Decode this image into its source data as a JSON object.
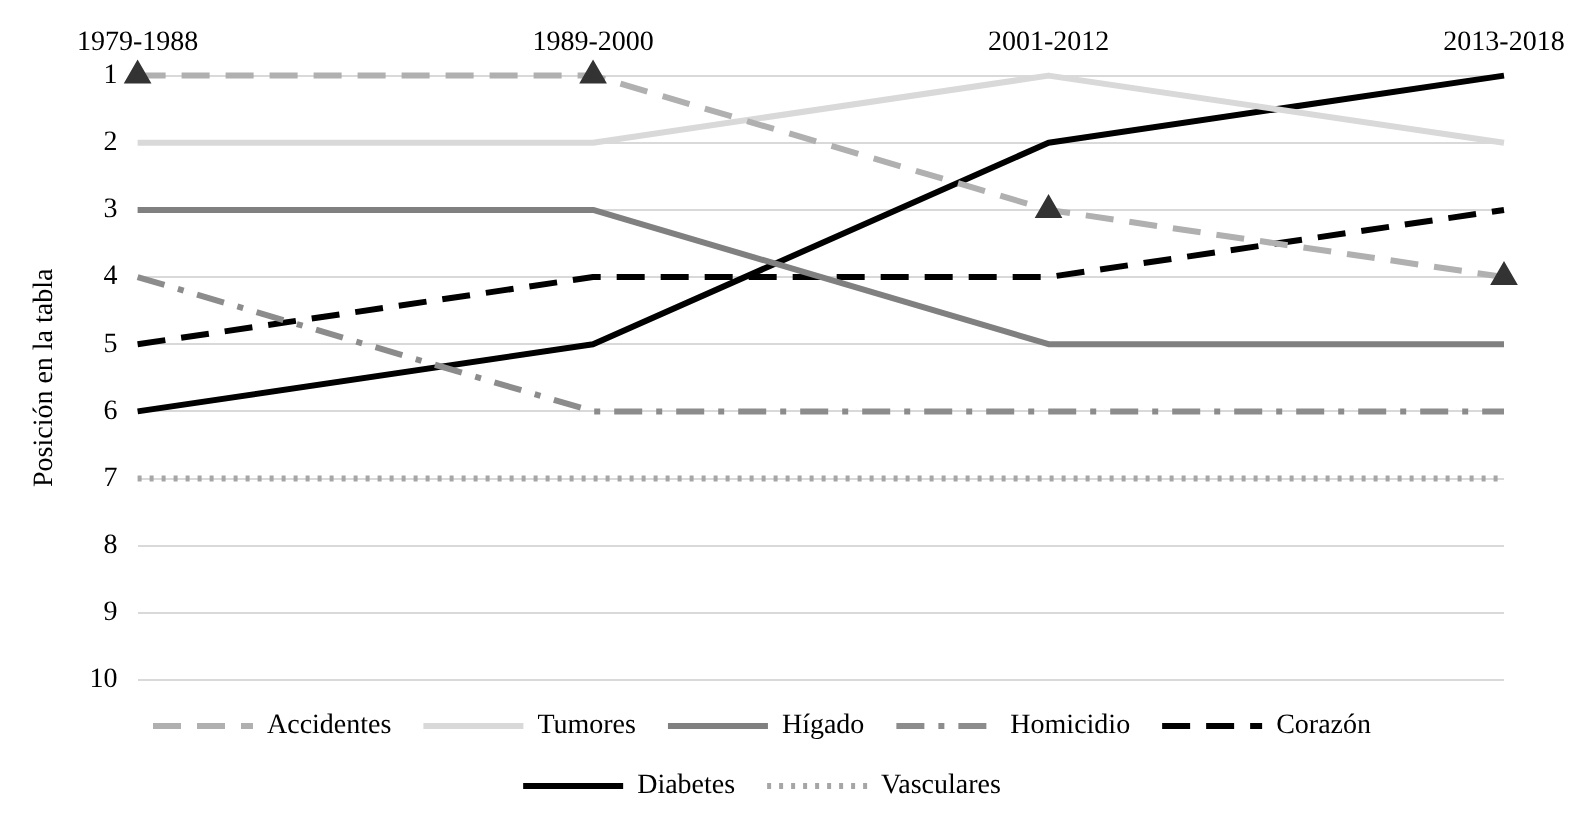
{
  "chart_data": {
    "type": "line",
    "ylabel": "Posición en la tabla",
    "categories": [
      "1979-1988",
      "1989-2000",
      "2001-2012",
      "2013-2018"
    ],
    "series": [
      {
        "name": "Accidentes",
        "color": "#b0b0b0",
        "values": [
          1,
          1,
          3,
          4
        ],
        "line_style": "dashed",
        "marker": "triangle"
      },
      {
        "name": "Tumores",
        "color": "#d9d9d9",
        "values": [
          2,
          2,
          1,
          2
        ],
        "line_style": "solid"
      },
      {
        "name": "Hígado",
        "color": "#808080",
        "values": [
          3,
          3,
          5,
          5
        ],
        "line_style": "solid"
      },
      {
        "name": "Homicidio",
        "color": "#8c8c8c",
        "values": [
          4,
          6,
          6,
          6
        ],
        "line_style": "dashdot"
      },
      {
        "name": "Corazón",
        "color": "#000000",
        "values": [
          5,
          4,
          4,
          3
        ],
        "line_style": "dashed"
      },
      {
        "name": "Diabetes",
        "color": "#000000",
        "values": [
          6,
          5,
          2,
          1
        ],
        "line_style": "solid"
      },
      {
        "name": "Vasculares",
        "color": "#a6a6a6",
        "values": [
          7,
          7,
          7,
          7
        ],
        "line_style": "dotted"
      }
    ],
    "ylim": [
      10,
      1
    ],
    "yticks": [
      1,
      2,
      3,
      4,
      5,
      6,
      7,
      8,
      9,
      10
    ],
    "grid": "y",
    "legend": "bottom",
    "marker": "none"
  }
}
